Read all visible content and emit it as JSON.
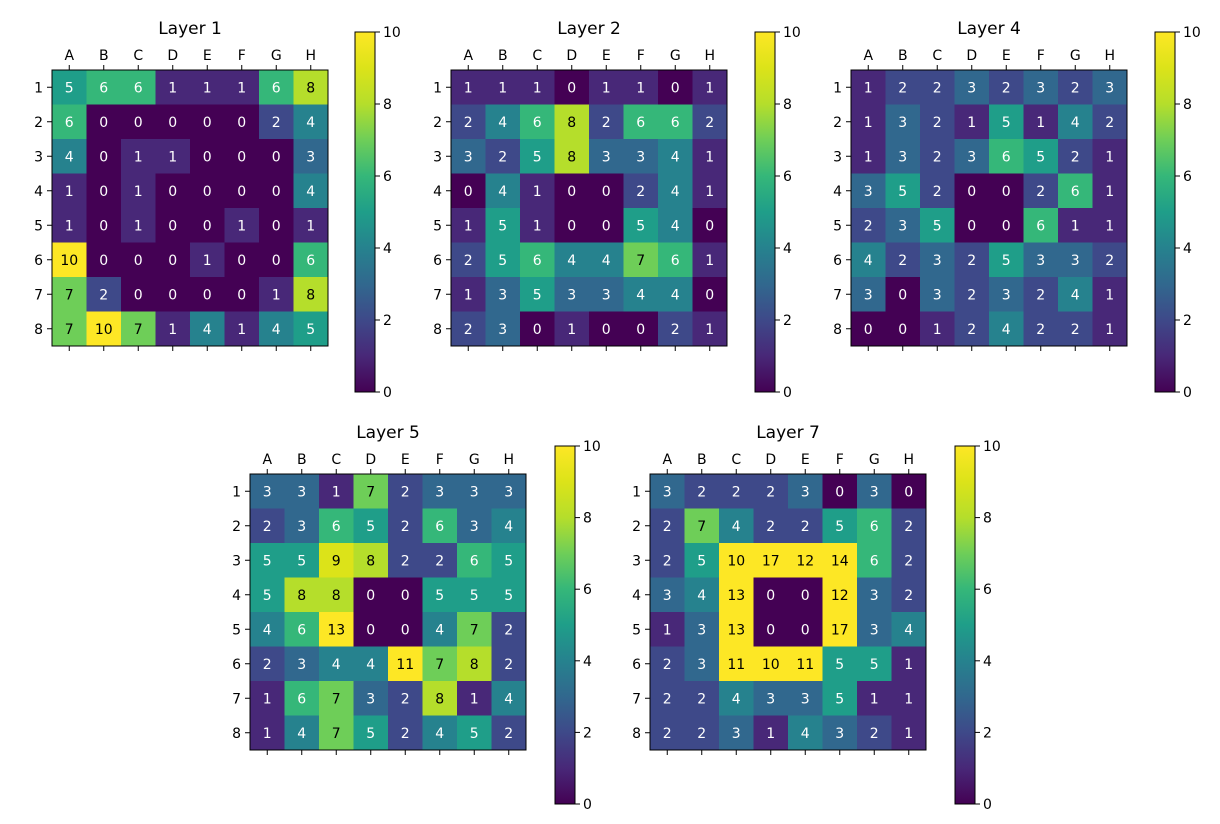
{
  "chart_data": [
    {
      "type": "heatmap",
      "title": "Layer 1",
      "x_labels": [
        "A",
        "B",
        "C",
        "D",
        "E",
        "F",
        "G",
        "H"
      ],
      "y_labels": [
        "1",
        "2",
        "3",
        "4",
        "5",
        "6",
        "7",
        "8"
      ],
      "colormap": "viridis",
      "vmin": 0,
      "vmax": 10,
      "colorbar_ticks": [
        "0",
        "2",
        "4",
        "6",
        "8",
        "10"
      ],
      "values": [
        [
          5,
          6,
          6,
          1,
          1,
          1,
          6,
          8
        ],
        [
          6,
          0,
          0,
          0,
          0,
          0,
          2,
          4
        ],
        [
          4,
          0,
          1,
          1,
          0,
          0,
          0,
          3
        ],
        [
          1,
          0,
          1,
          0,
          0,
          0,
          0,
          4
        ],
        [
          1,
          0,
          1,
          0,
          0,
          1,
          0,
          1
        ],
        [
          10,
          0,
          0,
          0,
          1,
          0,
          0,
          6
        ],
        [
          7,
          2,
          0,
          0,
          0,
          0,
          1,
          8
        ],
        [
          7,
          10,
          7,
          1,
          4,
          1,
          4,
          5
        ]
      ]
    },
    {
      "type": "heatmap",
      "title": "Layer 2",
      "x_labels": [
        "A",
        "B",
        "C",
        "D",
        "E",
        "F",
        "G",
        "H"
      ],
      "y_labels": [
        "1",
        "2",
        "3",
        "4",
        "5",
        "6",
        "7",
        "8"
      ],
      "colormap": "viridis",
      "vmin": 0,
      "vmax": 10,
      "colorbar_ticks": [
        "0",
        "2",
        "4",
        "6",
        "8",
        "10"
      ],
      "values": [
        [
          1,
          1,
          1,
          0,
          1,
          1,
          0,
          1
        ],
        [
          2,
          4,
          6,
          8,
          2,
          6,
          6,
          2
        ],
        [
          3,
          2,
          5,
          8,
          3,
          3,
          4,
          1
        ],
        [
          0,
          4,
          1,
          0,
          0,
          2,
          4,
          1
        ],
        [
          1,
          5,
          1,
          0,
          0,
          5,
          4,
          0
        ],
        [
          2,
          5,
          6,
          4,
          4,
          7,
          6,
          1
        ],
        [
          1,
          3,
          5,
          3,
          3,
          4,
          4,
          0
        ],
        [
          2,
          3,
          0,
          1,
          0,
          0,
          2,
          1
        ]
      ]
    },
    {
      "type": "heatmap",
      "title": "Layer 4",
      "x_labels": [
        "A",
        "B",
        "C",
        "D",
        "E",
        "F",
        "G",
        "H"
      ],
      "y_labels": [
        "1",
        "2",
        "3",
        "4",
        "5",
        "6",
        "7",
        "8"
      ],
      "colormap": "viridis",
      "vmin": 0,
      "vmax": 10,
      "colorbar_ticks": [
        "0",
        "2",
        "4",
        "6",
        "8",
        "10"
      ],
      "values": [
        [
          1,
          2,
          2,
          3,
          2,
          3,
          2,
          3
        ],
        [
          1,
          3,
          2,
          1,
          5,
          1,
          4,
          2
        ],
        [
          1,
          3,
          2,
          3,
          6,
          5,
          2,
          1
        ],
        [
          3,
          5,
          2,
          0,
          0,
          2,
          6,
          1
        ],
        [
          2,
          3,
          5,
          0,
          0,
          6,
          1,
          1
        ],
        [
          4,
          2,
          3,
          2,
          5,
          3,
          3,
          2
        ],
        [
          3,
          0,
          3,
          2,
          3,
          2,
          4,
          1
        ],
        [
          0,
          0,
          1,
          2,
          4,
          2,
          2,
          1
        ]
      ]
    },
    {
      "type": "heatmap",
      "title": "Layer 5",
      "x_labels": [
        "A",
        "B",
        "C",
        "D",
        "E",
        "F",
        "G",
        "H"
      ],
      "y_labels": [
        "1",
        "2",
        "3",
        "4",
        "5",
        "6",
        "7",
        "8"
      ],
      "colormap": "viridis",
      "vmin": 0,
      "vmax": 10,
      "colorbar_ticks": [
        "0",
        "2",
        "4",
        "6",
        "8",
        "10"
      ],
      "values": [
        [
          3,
          3,
          1,
          7,
          2,
          3,
          3,
          3
        ],
        [
          2,
          3,
          6,
          5,
          2,
          6,
          3,
          4
        ],
        [
          5,
          5,
          9,
          8,
          2,
          2,
          6,
          5
        ],
        [
          5,
          8,
          8,
          0,
          0,
          5,
          5,
          5
        ],
        [
          4,
          6,
          13,
          0,
          0,
          4,
          7,
          2
        ],
        [
          2,
          3,
          4,
          4,
          11,
          7,
          8,
          2
        ],
        [
          1,
          6,
          7,
          3,
          2,
          8,
          1,
          4
        ],
        [
          1,
          4,
          7,
          5,
          2,
          4,
          5,
          2
        ]
      ]
    },
    {
      "type": "heatmap",
      "title": "Layer 7",
      "x_labels": [
        "A",
        "B",
        "C",
        "D",
        "E",
        "F",
        "G",
        "H"
      ],
      "y_labels": [
        "1",
        "2",
        "3",
        "4",
        "5",
        "6",
        "7",
        "8"
      ],
      "colormap": "viridis",
      "vmin": 0,
      "vmax": 10,
      "colorbar_ticks": [
        "0",
        "2",
        "4",
        "6",
        "8",
        "10"
      ],
      "values": [
        [
          3,
          2,
          2,
          2,
          3,
          0,
          3,
          0
        ],
        [
          2,
          7,
          4,
          2,
          2,
          5,
          6,
          2
        ],
        [
          2,
          5,
          10,
          17,
          12,
          14,
          6,
          2
        ],
        [
          3,
          4,
          13,
          0,
          0,
          12,
          3,
          2
        ],
        [
          1,
          3,
          13,
          0,
          0,
          17,
          3,
          4
        ],
        [
          2,
          3,
          11,
          10,
          11,
          5,
          5,
          1
        ],
        [
          2,
          2,
          4,
          3,
          3,
          5,
          1,
          1
        ],
        [
          2,
          2,
          3,
          1,
          4,
          3,
          2,
          1
        ]
      ]
    }
  ]
}
